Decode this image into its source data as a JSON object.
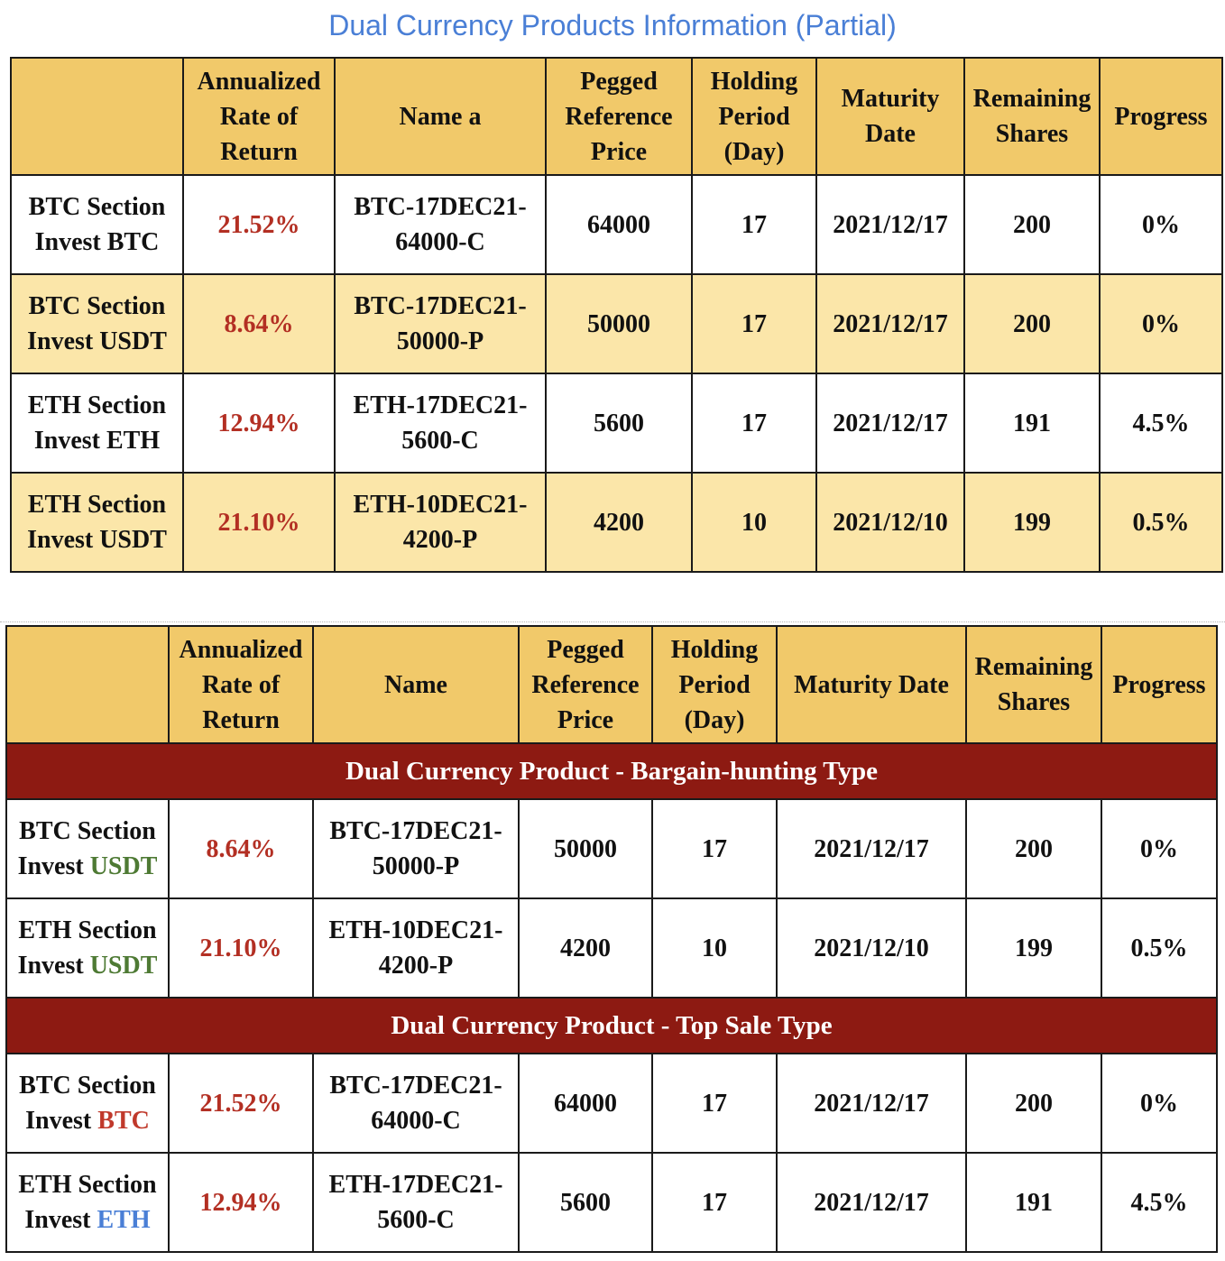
{
  "title": "Dual Currency Products Information (Partial)",
  "table1": {
    "headers": [
      "",
      "Annualized Rate of Return",
      "Name a",
      "Pegged Reference Price",
      "Holding Period (Day)",
      "Maturity Date",
      "Remaining Shares",
      "Progress"
    ],
    "rows": [
      {
        "section": "BTC Section",
        "invest": "Invest BTC",
        "rate": "21.52%",
        "name": "BTC-17DEC21-64000-C",
        "price": "64000",
        "period": "17",
        "maturity": "2021/12/17",
        "shares": "200",
        "progress": "0%"
      },
      {
        "section": "BTC Section",
        "invest": "Invest USDT",
        "rate": "8.64%",
        "name": "BTC-17DEC21-50000-P",
        "price": "50000",
        "period": "17",
        "maturity": "2021/12/17",
        "shares": "200",
        "progress": "0%"
      },
      {
        "section": "ETH Section",
        "invest": "Invest ETH",
        "rate": "12.94%",
        "name": "ETH-17DEC21-5600-C",
        "price": "5600",
        "period": "17",
        "maturity": "2021/12/17",
        "shares": "191",
        "progress": "4.5%"
      },
      {
        "section": "ETH Section",
        "invest": "Invest USDT",
        "rate": "21.10%",
        "name": "ETH-10DEC21-4200-P",
        "price": "4200",
        "period": "10",
        "maturity": "2021/12/10",
        "shares": "199",
        "progress": "0.5%"
      }
    ]
  },
  "table2": {
    "headers": [
      "",
      "Annualized Rate of Return",
      "Name",
      "Pegged Reference Price",
      "Holding Period (Day)",
      "Maturity Date",
      "Remaining Shares",
      "Progress"
    ],
    "groups": [
      {
        "title": "Dual Currency Product - Bargain-hunting Type",
        "rows": [
          {
            "section": "BTC Section",
            "invest_prefix": "Invest",
            "currency": "USDT",
            "rate": "8.64%",
            "name": "BTC-17DEC21-50000-P",
            "price": "50000",
            "period": "17",
            "maturity": "2021/12/17",
            "shares": "200",
            "progress": "0%"
          },
          {
            "section": "ETH Section",
            "invest_prefix": "Invest",
            "currency": "USDT",
            "rate": "21.10%",
            "name": "ETH-10DEC21-4200-P",
            "price": "4200",
            "period": "10",
            "maturity": "2021/12/10",
            "shares": "199",
            "progress": "0.5%"
          }
        ]
      },
      {
        "title": "Dual Currency Product - Top Sale Type",
        "rows": [
          {
            "section": "BTC Section",
            "invest_prefix": "Invest",
            "currency": "BTC",
            "rate": "21.52%",
            "name": "BTC-17DEC21-64000-C",
            "price": "64000",
            "period": "17",
            "maturity": "2021/12/17",
            "shares": "200",
            "progress": "0%"
          },
          {
            "section": "ETH Section",
            "invest_prefix": "Invest",
            "currency": "ETH",
            "rate": "12.94%",
            "name": "ETH-17DEC21-5600-C",
            "price": "5600",
            "period": "17",
            "maturity": "2021/12/17",
            "shares": "191",
            "progress": "4.5%"
          }
        ]
      }
    ]
  },
  "colors": {
    "header_bg": "#f1c96a",
    "alt_row_bg": "#fbe6a9",
    "section_bg": "#8d1a12",
    "rate": "#b32f23",
    "usdt": "#4e7a34",
    "btc": "#c0392b",
    "eth": "#4a7fd6",
    "title": "#4a7fd6"
  }
}
